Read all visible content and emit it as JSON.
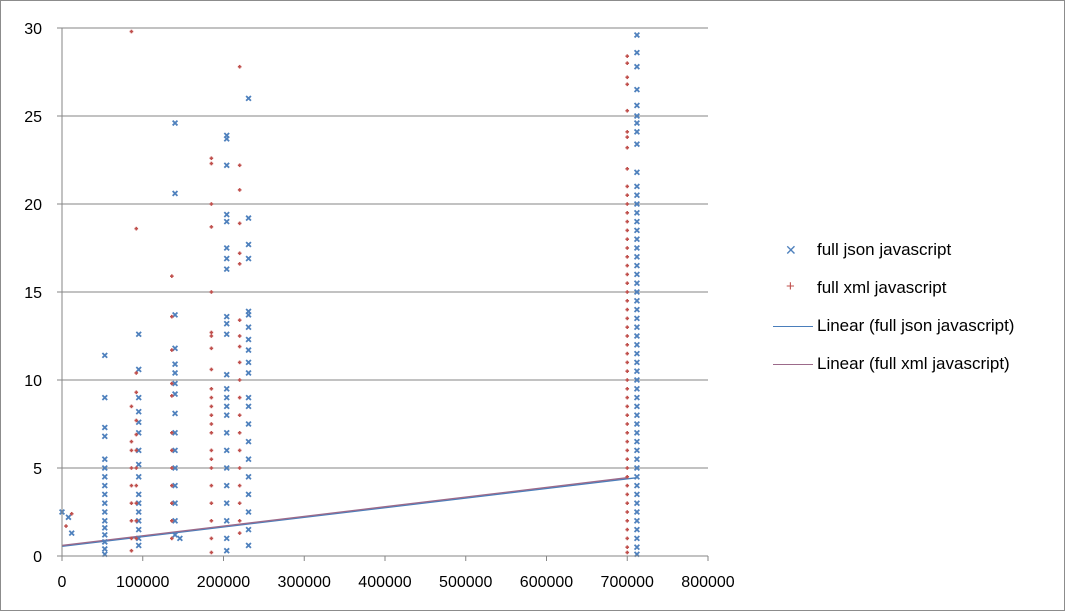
{
  "colors": {
    "json": "#4f81bd",
    "xml": "#c0504d",
    "json_trend": "#4a7ebb",
    "xml_trend": "#9c6a8a",
    "grid": "#868686",
    "axis": "#868686"
  },
  "chart_data": {
    "type": "scatter",
    "title": "",
    "xlabel": "",
    "ylabel": "",
    "xlim": [
      0,
      800000
    ],
    "ylim": [
      0,
      30
    ],
    "x_ticks": [
      "0",
      "100000",
      "200000",
      "300000",
      "400000",
      "500000",
      "600000",
      "700000",
      "800000"
    ],
    "y_ticks": [
      "0",
      "5",
      "10",
      "15",
      "20",
      "25",
      "30"
    ],
    "grid": "horizontal",
    "legend_position": "right",
    "series": [
      {
        "name": "full json javascript",
        "marker": "x",
        "points": [
          [
            0,
            2.5
          ],
          [
            8000,
            2.2
          ],
          [
            12000,
            1.3
          ],
          [
            53000,
            11.4
          ],
          [
            53000,
            9.0
          ],
          [
            53000,
            7.3
          ],
          [
            53000,
            6.8
          ],
          [
            53000,
            5.5
          ],
          [
            53000,
            5.0
          ],
          [
            53000,
            4.5
          ],
          [
            53000,
            4.0
          ],
          [
            53000,
            3.5
          ],
          [
            53000,
            3.0
          ],
          [
            53000,
            2.5
          ],
          [
            53000,
            2.0
          ],
          [
            53000,
            1.6
          ],
          [
            53000,
            1.2
          ],
          [
            53000,
            0.8
          ],
          [
            53000,
            0.4
          ],
          [
            53000,
            0.1
          ],
          [
            95000,
            12.6
          ],
          [
            95000,
            10.6
          ],
          [
            95000,
            9.0
          ],
          [
            95000,
            8.2
          ],
          [
            95000,
            7.6
          ],
          [
            95000,
            7.0
          ],
          [
            95000,
            6.0
          ],
          [
            95000,
            5.2
          ],
          [
            95000,
            4.5
          ],
          [
            95000,
            3.5
          ],
          [
            95000,
            3.0
          ],
          [
            95000,
            2.5
          ],
          [
            95000,
            2.0
          ],
          [
            95000,
            1.5
          ],
          [
            95000,
            1.0
          ],
          [
            95000,
            0.6
          ],
          [
            140000,
            24.6
          ],
          [
            140000,
            20.6
          ],
          [
            140000,
            13.7
          ],
          [
            140000,
            11.8
          ],
          [
            140000,
            10.9
          ],
          [
            140000,
            10.4
          ],
          [
            140000,
            9.8
          ],
          [
            140000,
            9.2
          ],
          [
            140000,
            8.1
          ],
          [
            140000,
            7.0
          ],
          [
            140000,
            6.0
          ],
          [
            140000,
            5.0
          ],
          [
            140000,
            4.0
          ],
          [
            140000,
            3.0
          ],
          [
            140000,
            2.0
          ],
          [
            140000,
            1.2
          ],
          [
            146000,
            1.0
          ],
          [
            204000,
            23.9
          ],
          [
            204000,
            23.7
          ],
          [
            204000,
            22.2
          ],
          [
            204000,
            19.4
          ],
          [
            204000,
            19.0
          ],
          [
            204000,
            17.5
          ],
          [
            204000,
            16.9
          ],
          [
            204000,
            16.3
          ],
          [
            204000,
            13.6
          ],
          [
            204000,
            13.2
          ],
          [
            204000,
            12.6
          ],
          [
            204000,
            10.3
          ],
          [
            204000,
            9.5
          ],
          [
            204000,
            9.0
          ],
          [
            204000,
            8.5
          ],
          [
            204000,
            8.0
          ],
          [
            204000,
            7.0
          ],
          [
            204000,
            6.0
          ],
          [
            204000,
            5.0
          ],
          [
            204000,
            4.0
          ],
          [
            204000,
            3.0
          ],
          [
            204000,
            2.0
          ],
          [
            204000,
            1.0
          ],
          [
            204000,
            0.3
          ],
          [
            231000,
            26.0
          ],
          [
            231000,
            19.2
          ],
          [
            231000,
            17.7
          ],
          [
            231000,
            16.9
          ],
          [
            231000,
            13.9
          ],
          [
            231000,
            13.7
          ],
          [
            231000,
            13.0
          ],
          [
            231000,
            12.3
          ],
          [
            231000,
            11.7
          ],
          [
            231000,
            11.0
          ],
          [
            231000,
            10.4
          ],
          [
            231000,
            9.0
          ],
          [
            231000,
            8.5
          ],
          [
            231000,
            7.5
          ],
          [
            231000,
            6.5
          ],
          [
            231000,
            5.5
          ],
          [
            231000,
            4.5
          ],
          [
            231000,
            3.5
          ],
          [
            231000,
            2.5
          ],
          [
            231000,
            1.5
          ],
          [
            231000,
            0.6
          ],
          [
            712000,
            29.6
          ],
          [
            712000,
            28.6
          ],
          [
            712000,
            27.8
          ],
          [
            712000,
            26.5
          ],
          [
            712000,
            25.6
          ],
          [
            712000,
            25.0
          ],
          [
            712000,
            24.6
          ],
          [
            712000,
            24.1
          ],
          [
            712000,
            23.4
          ],
          [
            712000,
            21.8
          ],
          [
            712000,
            21.0
          ],
          [
            712000,
            20.5
          ],
          [
            712000,
            20.0
          ],
          [
            712000,
            19.5
          ],
          [
            712000,
            19.0
          ],
          [
            712000,
            18.5
          ],
          [
            712000,
            18.0
          ],
          [
            712000,
            17.5
          ],
          [
            712000,
            17.0
          ],
          [
            712000,
            16.5
          ],
          [
            712000,
            16.0
          ],
          [
            712000,
            15.5
          ],
          [
            712000,
            15.0
          ],
          [
            712000,
            14.5
          ],
          [
            712000,
            14.0
          ],
          [
            712000,
            13.5
          ],
          [
            712000,
            13.0
          ],
          [
            712000,
            12.5
          ],
          [
            712000,
            12.0
          ],
          [
            712000,
            11.5
          ],
          [
            712000,
            11.0
          ],
          [
            712000,
            10.5
          ],
          [
            712000,
            10.0
          ],
          [
            712000,
            9.5
          ],
          [
            712000,
            9.0
          ],
          [
            712000,
            8.5
          ],
          [
            712000,
            8.0
          ],
          [
            712000,
            7.5
          ],
          [
            712000,
            7.0
          ],
          [
            712000,
            6.5
          ],
          [
            712000,
            6.0
          ],
          [
            712000,
            5.5
          ],
          [
            712000,
            5.0
          ],
          [
            712000,
            4.5
          ],
          [
            712000,
            4.0
          ],
          [
            712000,
            3.5
          ],
          [
            712000,
            3.0
          ],
          [
            712000,
            2.5
          ],
          [
            712000,
            2.0
          ],
          [
            712000,
            1.5
          ],
          [
            712000,
            1.0
          ],
          [
            712000,
            0.5
          ],
          [
            712000,
            0.1
          ]
        ]
      },
      {
        "name": "full xml javascript",
        "marker": "+",
        "points": [
          [
            5000,
            1.7
          ],
          [
            12000,
            2.4
          ],
          [
            86000,
            29.8
          ],
          [
            86000,
            8.5
          ],
          [
            86000,
            6.5
          ],
          [
            86000,
            6.0
          ],
          [
            86000,
            5.0
          ],
          [
            86000,
            4.0
          ],
          [
            86000,
            3.0
          ],
          [
            86000,
            2.0
          ],
          [
            86000,
            1.0
          ],
          [
            86000,
            0.3
          ],
          [
            92000,
            18.6
          ],
          [
            92000,
            10.4
          ],
          [
            92000,
            9.3
          ],
          [
            92000,
            7.7
          ],
          [
            92000,
            6.9
          ],
          [
            92000,
            6.0
          ],
          [
            92000,
            5.0
          ],
          [
            92000,
            4.0
          ],
          [
            92000,
            3.0
          ],
          [
            92000,
            2.0
          ],
          [
            92000,
            1.0
          ],
          [
            136000,
            15.9
          ],
          [
            136000,
            13.6
          ],
          [
            136000,
            11.7
          ],
          [
            136000,
            9.8
          ],
          [
            136000,
            9.1
          ],
          [
            136000,
            7.0
          ],
          [
            136000,
            6.0
          ],
          [
            136000,
            5.0
          ],
          [
            136000,
            4.0
          ],
          [
            136000,
            3.0
          ],
          [
            136000,
            2.0
          ],
          [
            136000,
            1.0
          ],
          [
            185000,
            22.6
          ],
          [
            185000,
            22.3
          ],
          [
            185000,
            20.0
          ],
          [
            185000,
            18.7
          ],
          [
            185000,
            15.0
          ],
          [
            185000,
            12.7
          ],
          [
            185000,
            12.5
          ],
          [
            185000,
            11.8
          ],
          [
            185000,
            10.6
          ],
          [
            185000,
            9.5
          ],
          [
            185000,
            9.0
          ],
          [
            185000,
            8.5
          ],
          [
            185000,
            8.0
          ],
          [
            185000,
            7.5
          ],
          [
            185000,
            7.0
          ],
          [
            185000,
            6.0
          ],
          [
            185000,
            5.5
          ],
          [
            185000,
            5.0
          ],
          [
            185000,
            4.0
          ],
          [
            185000,
            3.0
          ],
          [
            185000,
            2.0
          ],
          [
            185000,
            1.0
          ],
          [
            185000,
            0.2
          ],
          [
            220000,
            27.8
          ],
          [
            220000,
            22.2
          ],
          [
            220000,
            20.8
          ],
          [
            220000,
            18.9
          ],
          [
            220000,
            17.2
          ],
          [
            220000,
            16.6
          ],
          [
            220000,
            13.4
          ],
          [
            220000,
            12.5
          ],
          [
            220000,
            11.9
          ],
          [
            220000,
            11.0
          ],
          [
            220000,
            10.0
          ],
          [
            220000,
            9.0
          ],
          [
            220000,
            8.0
          ],
          [
            220000,
            7.0
          ],
          [
            220000,
            6.0
          ],
          [
            220000,
            5.0
          ],
          [
            220000,
            4.0
          ],
          [
            220000,
            3.0
          ],
          [
            220000,
            2.0
          ],
          [
            220000,
            1.3
          ],
          [
            700000,
            28.4
          ],
          [
            700000,
            28.0
          ],
          [
            700000,
            27.2
          ],
          [
            700000,
            26.8
          ],
          [
            700000,
            25.3
          ],
          [
            700000,
            24.1
          ],
          [
            700000,
            23.8
          ],
          [
            700000,
            23.2
          ],
          [
            700000,
            22.0
          ],
          [
            700000,
            21.0
          ],
          [
            700000,
            20.5
          ],
          [
            700000,
            20.0
          ],
          [
            700000,
            19.5
          ],
          [
            700000,
            19.0
          ],
          [
            700000,
            18.5
          ],
          [
            700000,
            18.0
          ],
          [
            700000,
            17.5
          ],
          [
            700000,
            17.0
          ],
          [
            700000,
            16.5
          ],
          [
            700000,
            16.0
          ],
          [
            700000,
            15.5
          ],
          [
            700000,
            15.0
          ],
          [
            700000,
            14.5
          ],
          [
            700000,
            14.0
          ],
          [
            700000,
            13.5
          ],
          [
            700000,
            13.0
          ],
          [
            700000,
            12.5
          ],
          [
            700000,
            12.0
          ],
          [
            700000,
            11.5
          ],
          [
            700000,
            11.0
          ],
          [
            700000,
            10.5
          ],
          [
            700000,
            10.0
          ],
          [
            700000,
            9.5
          ],
          [
            700000,
            9.0
          ],
          [
            700000,
            8.5
          ],
          [
            700000,
            8.0
          ],
          [
            700000,
            7.5
          ],
          [
            700000,
            7.0
          ],
          [
            700000,
            6.5
          ],
          [
            700000,
            6.0
          ],
          [
            700000,
            5.5
          ],
          [
            700000,
            5.0
          ],
          [
            700000,
            4.5
          ],
          [
            700000,
            4.0
          ],
          [
            700000,
            3.5
          ],
          [
            700000,
            3.0
          ],
          [
            700000,
            2.5
          ],
          [
            700000,
            2.0
          ],
          [
            700000,
            1.5
          ],
          [
            700000,
            1.0
          ],
          [
            700000,
            0.5
          ],
          [
            700000,
            0.2
          ]
        ]
      }
    ],
    "trendlines": [
      {
        "name": "Linear (full json javascript)",
        "type": "linear",
        "x": [
          0,
          712000
        ],
        "y": [
          0.55,
          4.45
        ]
      },
      {
        "name": "Linear (full xml javascript)",
        "type": "linear",
        "x": [
          0,
          700000
        ],
        "y": [
          0.6,
          4.45
        ]
      }
    ]
  },
  "legend": {
    "items": [
      {
        "label": "full json javascript",
        "key": "x-marker"
      },
      {
        "label": "full xml javascript",
        "key": "plus-marker"
      },
      {
        "label": "Linear (full json javascript)",
        "key": "json-line"
      },
      {
        "label": "Linear (full xml javascript)",
        "key": "xml-line"
      }
    ]
  }
}
